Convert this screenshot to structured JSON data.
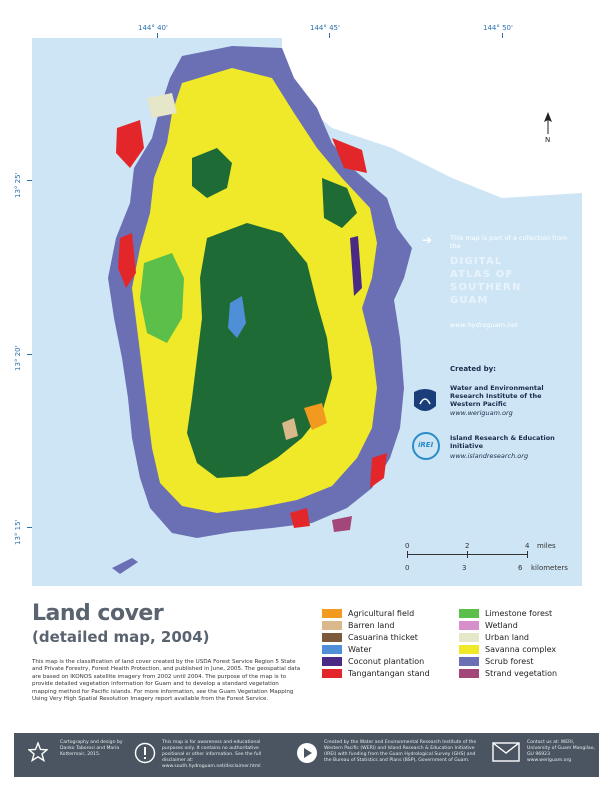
{
  "coordinates": {
    "lon": [
      "144° 40'",
      "144° 45'",
      "144° 50'"
    ],
    "lat": [
      "13° 25'",
      "13° 20'",
      "13° 15'"
    ]
  },
  "north_label": "N",
  "info": {
    "part_of": "This map is part of a collection from the",
    "atlas_lines": [
      "DIGITAL",
      "ATLAS OF",
      "SOUTHERN",
      "GUAM"
    ],
    "atlas_web": "www.hydroguam.net",
    "created_by": "Created by:",
    "weri_name": "Water and Environmental Research Institute of the Western Pacific",
    "weri_web": "www.weriguam.org",
    "irei_logo": "iREI",
    "irei_name": "Island Research & Education Initiative",
    "irei_web": "www.islandresearch.org"
  },
  "scale": {
    "miles_ticks": [
      "0",
      "2",
      "4"
    ],
    "miles_unit": "miles",
    "km_ticks": [
      "0",
      "3",
      "6"
    ],
    "km_unit": "kilometers"
  },
  "title": "Land cover",
  "subtitle": "(detailed map, 2004)",
  "description": "This map is the classification of land cover created by the USDA Forest Service Region 5 State and Private Forestry, Forest Health Protection, and published in June, 2005. The geospatial data are based on IKONOS satellite imagery from 2002 until 2004. The purpose of the map is to provide detailed vegetation information for Guam and to develop a standard vegetation mapping method for Pacific islands. For more information, see the Guam Vegetation Mapping Using Very High Spatial Resolution Imagery report available from the Forest Service.",
  "legend": [
    {
      "label": "Agricultural field",
      "color": "#f29a1f"
    },
    {
      "label": "Barren land",
      "color": "#d9b98c"
    },
    {
      "label": "Casuarina thicket",
      "color": "#7a5a3a"
    },
    {
      "label": "Water",
      "color": "#4f8fd8"
    },
    {
      "label": "Coconut plantation",
      "color": "#4b2a86"
    },
    {
      "label": "Tangantangan stand",
      "color": "#e3262a"
    },
    {
      "label": "Limestone forest",
      "color": "#5cbf4a"
    },
    {
      "label": "Wetland",
      "color": "#d68fc8"
    },
    {
      "label": "Urban land",
      "color": "#e6e6c8"
    },
    {
      "label": "Savanna complex",
      "color": "#efe92a"
    },
    {
      "label": "Scrub forest",
      "color": "#6b6fb3"
    },
    {
      "label": "Strand vegetation",
      "color": "#a3477a"
    }
  ],
  "footer": {
    "credits": "Cartography and design by Danko Taborosi and Maria Kottermair, 2015.",
    "disclaimer": "This map is for awareness and educational purposes only. It contains no authoritative positional or other information. See the full disclaimer at: www.south.hydroguam.net/disclaimer.html",
    "funding": "Created by the Water and Environmental Research Institute of the Western Pacific (WERI) and Island Research & Education Initiative (IREI) with funding from the Guam Hydrological Survey (GHS) and the Bureau of Statistics and Plans (BSP), Government of Guam.",
    "contact": "Contact us at: WERI, University of Guam Mangilao, GU 96923 www.weriguam.org"
  },
  "colors": {
    "ocean": "#cde5f5",
    "land_north": "#ffffff",
    "savanna": "#efe92a",
    "forest": "#1f6b35",
    "scrub": "#6b6fb3",
    "footer": "#4a5561"
  }
}
